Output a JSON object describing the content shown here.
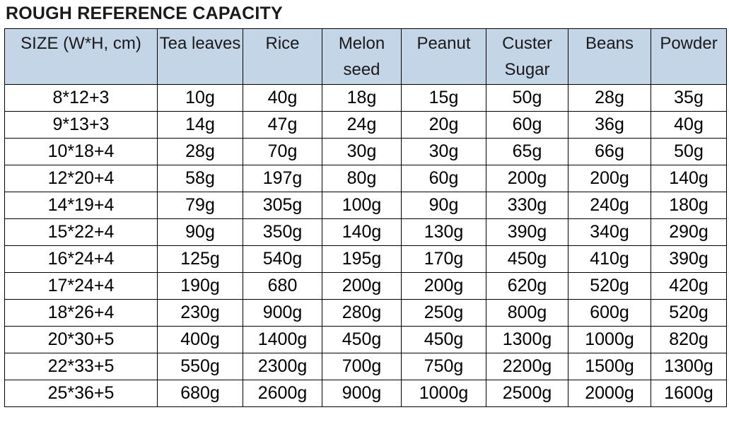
{
  "title": "ROUGH REFERENCE CAPACITY",
  "table": {
    "headers": [
      "SIZE (W*H, cm)",
      "Tea leaves",
      "Rice",
      "Melon seed",
      "Peanut",
      "Custer Sugar",
      "Beans",
      "Powder"
    ],
    "rows": [
      [
        "8*12+3",
        "10g",
        "40g",
        "18g",
        "15g",
        "50g",
        "28g",
        "35g"
      ],
      [
        "9*13+3",
        "14g",
        "47g",
        "24g",
        "20g",
        "60g",
        "36g",
        "40g"
      ],
      [
        "10*18+4",
        "28g",
        "70g",
        "30g",
        "30g",
        "65g",
        "66g",
        "50g"
      ],
      [
        "12*20+4",
        "58g",
        "197g",
        "80g",
        "60g",
        "200g",
        "200g",
        "140g"
      ],
      [
        "14*19+4",
        "79g",
        "305g",
        "100g",
        "90g",
        "330g",
        "240g",
        "180g"
      ],
      [
        "15*22+4",
        "90g",
        "350g",
        "140g",
        "130g",
        "390g",
        "340g",
        "290g"
      ],
      [
        "16*24+4",
        "125g",
        "540g",
        "195g",
        "170g",
        "450g",
        "410g",
        "390g"
      ],
      [
        "17*24+4",
        "190g",
        "680",
        "200g",
        "200g",
        "620g",
        "520g",
        "420g"
      ],
      [
        "18*26+4",
        "230g",
        "900g",
        "280g",
        "250g",
        "800g",
        "600g",
        "520g"
      ],
      [
        "20*30+5",
        "400g",
        "1400g",
        "450g",
        "450g",
        "1300g",
        "1000g",
        "820g"
      ],
      [
        "22*33+5",
        "550g",
        "2300g",
        "700g",
        "750g",
        "2200g",
        "1500g",
        "1300g"
      ],
      [
        "25*36+5",
        "680g",
        "2600g",
        "900g",
        "1000g",
        "2500g",
        "2000g",
        "1600g"
      ]
    ]
  },
  "colors": {
    "header_background": "#c5d5e8",
    "border": "#000000"
  }
}
